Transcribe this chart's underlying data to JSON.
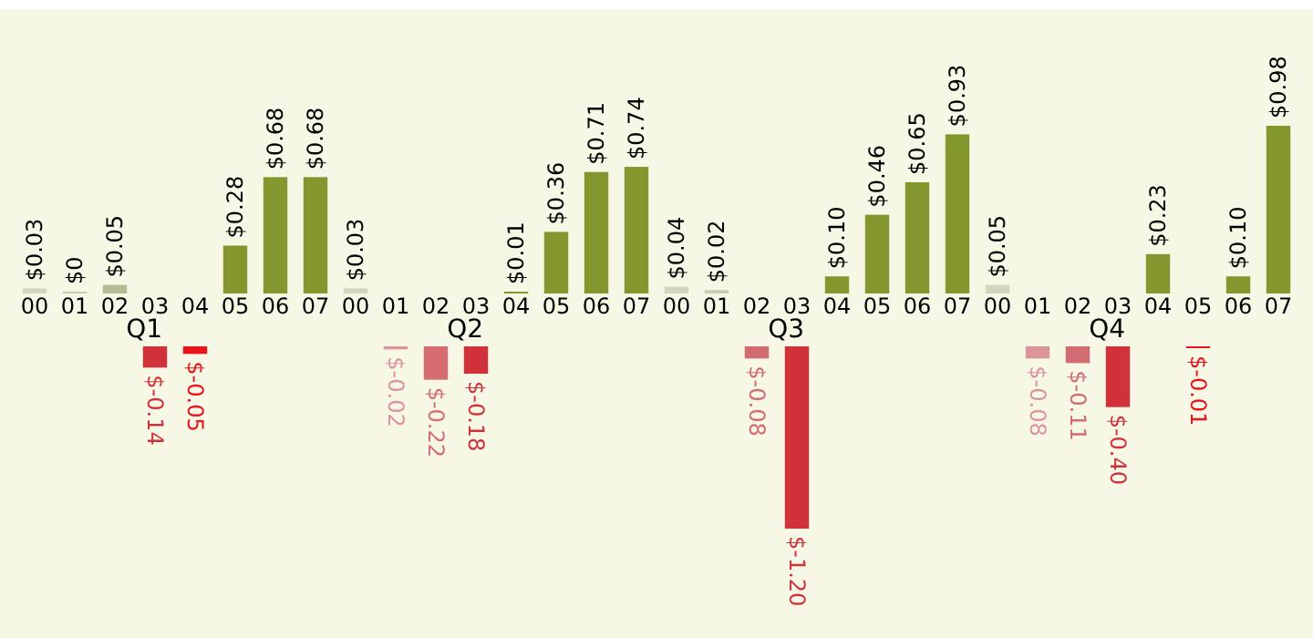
{
  "chart_data": [
    {
      "type": "bar",
      "categories": [
        "00",
        "01",
        "02",
        "03",
        "04",
        "05",
        "06",
        "07",
        "00",
        "01",
        "02",
        "03",
        "04",
        "05",
        "06",
        "07",
        "00",
        "01",
        "02",
        "03",
        "04",
        "05",
        "06",
        "07",
        "00",
        "01",
        "02",
        "03",
        "04",
        "05",
        "06",
        "07"
      ],
      "values": [
        0.03,
        0,
        0.05,
        null,
        null,
        0.28,
        0.68,
        0.68,
        0.03,
        null,
        null,
        null,
        0.01,
        0.36,
        0.71,
        0.74,
        0.04,
        0.02,
        null,
        null,
        0.1,
        0.46,
        0.65,
        0.93,
        0.05,
        null,
        null,
        null,
        0.23,
        null,
        0.1,
        0.98
      ],
      "colors": [
        "#d3d6bd",
        "#c9ccae",
        "#b4ba91",
        null,
        null,
        "#84962e",
        "#84962e",
        "#84962e",
        "#d3d6bd",
        null,
        null,
        null,
        "#84962e",
        "#84962e",
        "#84962e",
        "#84962e",
        "#d3d6bd",
        "#c9ccae",
        null,
        null,
        "#84962e",
        "#84962e",
        "#84962e",
        "#84962e",
        "#d3d6bd",
        null,
        null,
        null,
        "#84962e",
        null,
        "#84962e",
        "#84962e"
      ],
      "value_labels": [
        "$0.03",
        "$0",
        "$0.05",
        null,
        null,
        "$0.28",
        "$0.68",
        "$0.68",
        "$0.03",
        null,
        null,
        null,
        "$0.01",
        "$0.36",
        "$0.71",
        "$0.74",
        "$0.04",
        "$0.02",
        null,
        null,
        "$0.10",
        "$0.46",
        "$0.65",
        "$0.93",
        "$0.05",
        null,
        null,
        null,
        "$0.23",
        null,
        "$0.10",
        "$0.98"
      ],
      "annotations": [
        "Q1",
        "Q2",
        "Q3",
        "Q4"
      ]
    },
    {
      "type": "bar",
      "categories": [
        null,
        null,
        null,
        null,
        null,
        null,
        null,
        null,
        null,
        null,
        null,
        null,
        null,
        null,
        null,
        null,
        null,
        null,
        null,
        null,
        null,
        null,
        null,
        null,
        null,
        null,
        null,
        null,
        null,
        null,
        null,
        null
      ],
      "values": [
        null,
        null,
        null,
        -0.14,
        -0.05,
        null,
        null,
        null,
        null,
        -0.02,
        -0.22,
        -0.18,
        null,
        null,
        null,
        null,
        null,
        null,
        -0.08,
        -1.2,
        null,
        null,
        null,
        null,
        null,
        -0.08,
        -0.11,
        -0.4,
        null,
        -0.01,
        null,
        null
      ],
      "colors": [
        null,
        null,
        null,
        "#d1323a",
        "#e8141b",
        null,
        null,
        null,
        null,
        "#dd9499",
        "#d66d73",
        "#d1323a",
        null,
        null,
        null,
        null,
        null,
        null,
        "#d36b72",
        "#d1323a",
        null,
        null,
        null,
        null,
        null,
        "#dd9499",
        "#d36b72",
        "#d1323a",
        null,
        "#e8141b",
        null,
        null
      ],
      "value_labels": [
        null,
        null,
        null,
        "$-0.14",
        "$-0.05",
        null,
        null,
        null,
        null,
        "$-0.02",
        "$-0.22",
        "$-0.18",
        null,
        null,
        null,
        null,
        null,
        null,
        "$-0.08",
        "$-1.20",
        null,
        null,
        null,
        null,
        null,
        "$-0.08",
        "$-0.11",
        "$-0.40",
        null,
        "$-0.01",
        null,
        null
      ]
    }
  ]
}
